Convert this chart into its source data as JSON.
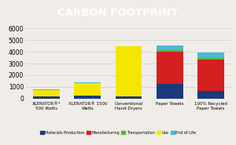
{
  "title": "CARBON FOOTPRINT",
  "title_bg": "#a8c83a",
  "categories": [
    "XLERATOR®*\n500 Watts",
    "XLERATOR® 1500\nWatts",
    "Conventional\nHand Dryers",
    "Paper Towels",
    "100% Recycled\nPaper Towels"
  ],
  "segments": {
    "Materials Production": {
      "color": "#1a3a7a",
      "values": [
        200,
        280,
        220,
        1280,
        680
      ]
    },
    "Manufacturing": {
      "color": "#d42020",
      "values": [
        0,
        0,
        0,
        2750,
        2650
      ]
    },
    "Transportation": {
      "color": "#5ab43c",
      "values": [
        0,
        0,
        0,
        120,
        120
      ]
    },
    "Use": {
      "color": "#f5e600",
      "values": [
        520,
        1050,
        4250,
        0,
        0
      ]
    },
    "End of Life": {
      "color": "#4ab8d8",
      "values": [
        60,
        90,
        0,
        400,
        480
      ]
    }
  },
  "ylim": [
    0,
    6200
  ],
  "yticks": [
    0,
    1000,
    2000,
    3000,
    4000,
    5000,
    6000
  ],
  "background_color": "#f0ede8",
  "plot_bg": "#f0ede8",
  "grid_color": "#cccccc",
  "legend_order": [
    "Materials Production",
    "Manufacturing",
    "Transportation",
    "Use",
    "End of Life"
  ]
}
